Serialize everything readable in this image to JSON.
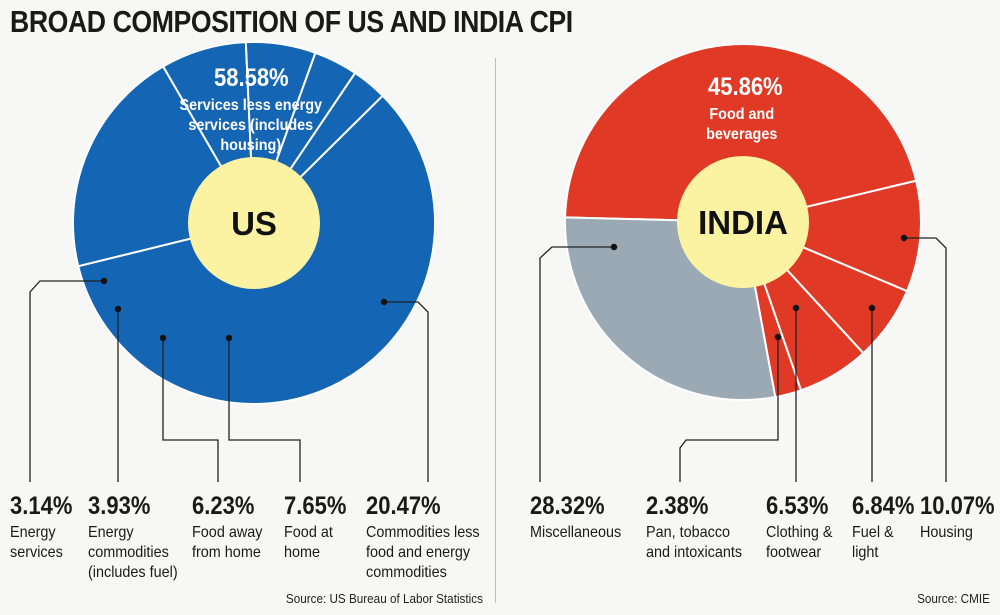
{
  "title": "BROAD COMPOSITION OF US AND INDIA CPI",
  "chart_data": [
    {
      "type": "pie",
      "center_label": "US",
      "source": "Source: US Bureau of Labor Statistics",
      "colors": {
        "slice": "#1565b5",
        "center": "#fbf3a2",
        "divider": "#ffffff",
        "leader": "#222222"
      },
      "slices": [
        {
          "value": "58.58%",
          "label": "Services less energy services (includes housing)",
          "amount": 58.58
        },
        {
          "value": "20.47%",
          "label": "Commodities less food and energy commodities",
          "amount": 20.47
        },
        {
          "value": "7.65%",
          "label": "Food at home",
          "amount": 7.65
        },
        {
          "value": "6.23%",
          "label": "Food away from home",
          "amount": 6.23
        },
        {
          "value": "3.93%",
          "label": "Energy commodities (includes fuel)",
          "amount": 3.93
        },
        {
          "value": "3.14%",
          "label": "Energy services",
          "amount": 3.14
        }
      ]
    },
    {
      "type": "pie",
      "center_label": "INDIA",
      "source": "Source: CMIE",
      "colors": {
        "slice": "#e03a26",
        "misc": "#9aa9b3",
        "center": "#fbf3a2",
        "divider": "#ffffff",
        "leader": "#222222"
      },
      "slices": [
        {
          "value": "45.86%",
          "label": "Food and beverages",
          "amount": 45.86
        },
        {
          "value": "10.07%",
          "label": "Housing",
          "amount": 10.07
        },
        {
          "value": "6.84%",
          "label": "Fuel & light",
          "amount": 6.84
        },
        {
          "value": "6.53%",
          "label": "Clothing & footwear",
          "amount": 6.53
        },
        {
          "value": "2.38%",
          "label": "Pan, tobacco and intoxicants",
          "amount": 2.38
        },
        {
          "value": "28.32%",
          "label": "Miscellaneous",
          "amount": 28.32
        }
      ]
    }
  ]
}
